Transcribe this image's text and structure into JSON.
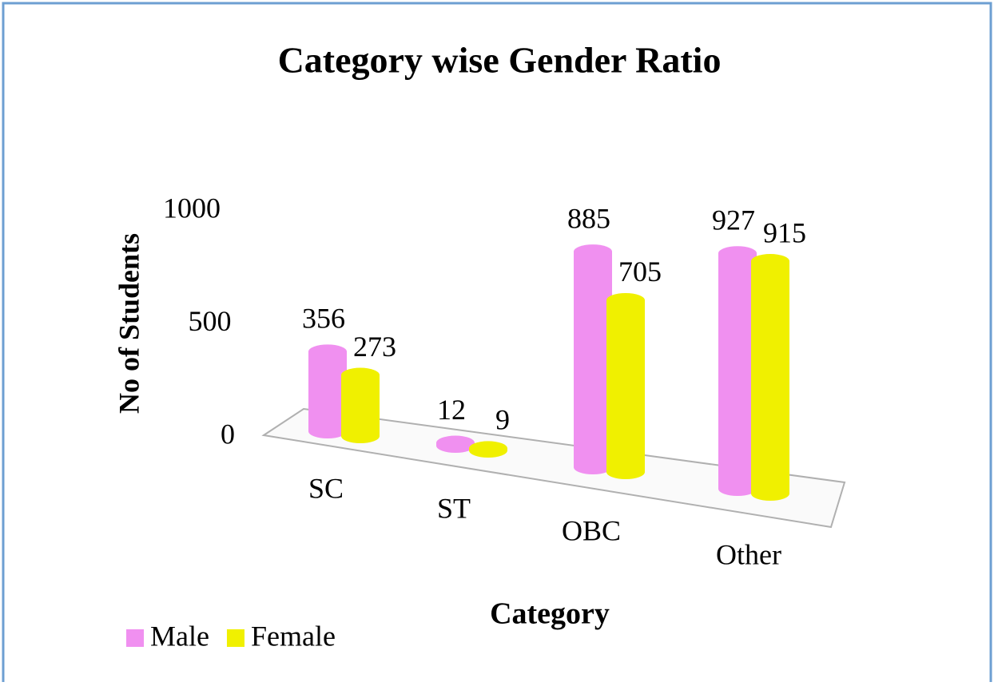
{
  "chart_data": {
    "type": "bar",
    "title": "Category wise Gender Ratio",
    "x_label": "Category",
    "y_label": "No of Students",
    "categories": [
      "SC",
      "ST",
      "OBC",
      "Other"
    ],
    "series": [
      {
        "name": "Male",
        "color": "#f090f0",
        "values": [
          356,
          12,
          885,
          927
        ]
      },
      {
        "name": "Female",
        "color": "#f0f000",
        "values": [
          273,
          9,
          705,
          915
        ]
      }
    ],
    "ylim": [
      0,
      1000
    ],
    "yticks": [
      0,
      500,
      1000
    ],
    "legend": "bottom-left"
  }
}
